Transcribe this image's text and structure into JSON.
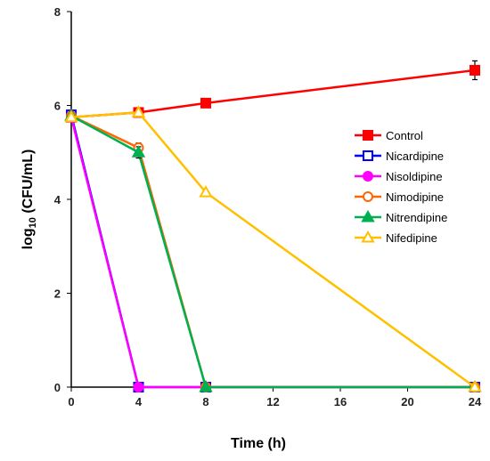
{
  "chart_data": {
    "type": "line",
    "xlabel": "Time (h)",
    "ylabel_main": "log",
    "ylabel_sub": "10",
    "ylabel_rest": " (CFU/mL)",
    "xlim": [
      0,
      24
    ],
    "ylim": [
      0,
      8
    ],
    "x_ticks": [
      "0",
      "4",
      "8",
      "12",
      "16",
      "20",
      "24"
    ],
    "y_ticks": [
      "0",
      "2",
      "4",
      "6",
      "8"
    ],
    "legend_position": "right-middle",
    "grid": false,
    "series": [
      {
        "name": "Control",
        "color": "#FF0000",
        "marker": "square-filled",
        "x": [
          0,
          4,
          8,
          24
        ],
        "y": [
          5.75,
          5.85,
          6.05,
          6.75
        ],
        "err": [
          0.08,
          0.05,
          0.05,
          0.2
        ]
      },
      {
        "name": "Nicardipine",
        "color": "#0000FF",
        "marker": "square-open",
        "x": [
          0,
          4,
          8,
          24
        ],
        "y": [
          5.8,
          0,
          0,
          0
        ],
        "err": [
          0.08,
          0,
          0,
          0
        ]
      },
      {
        "name": "Nisoldipine",
        "color": "#FF00FF",
        "marker": "circle-filled",
        "x": [
          0,
          4,
          8,
          24
        ],
        "y": [
          5.75,
          0,
          0,
          0
        ],
        "err": [
          0,
          0,
          0,
          0
        ]
      },
      {
        "name": "Nimodipine",
        "color": "#FF6600",
        "marker": "circle-open",
        "x": [
          0,
          4,
          8,
          24
        ],
        "y": [
          5.78,
          5.1,
          0,
          0
        ],
        "err": [
          0,
          0.1,
          0,
          0
        ]
      },
      {
        "name": "Nitrendipine",
        "color": "#00B050",
        "marker": "triangle-filled",
        "x": [
          0,
          4,
          8,
          24
        ],
        "y": [
          5.78,
          5.0,
          0,
          0
        ],
        "err": [
          0,
          0.12,
          0,
          0
        ]
      },
      {
        "name": "Nifedipine",
        "color": "#FFC000",
        "marker": "triangle-open",
        "x": [
          0,
          4,
          8,
          24
        ],
        "y": [
          5.75,
          5.85,
          4.15,
          0
        ],
        "err": [
          0,
          0,
          0,
          0
        ]
      }
    ]
  }
}
